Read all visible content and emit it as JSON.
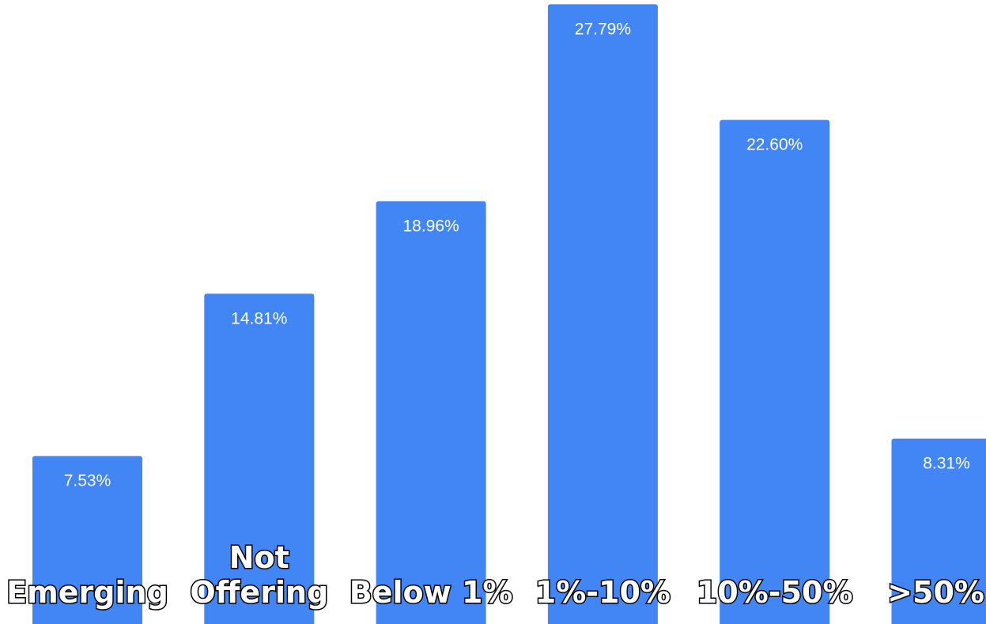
{
  "chart_data": {
    "type": "bar",
    "title": "",
    "xlabel": "",
    "ylabel": "",
    "grid": false,
    "legend": "none",
    "ylim": [
      0,
      30
    ],
    "categories": [
      [
        "Emerging"
      ],
      [
        "Not",
        "Offering"
      ],
      [
        "Below 1%"
      ],
      [
        "1%-10%"
      ],
      [
        "10%-50%"
      ],
      [
        ">50%"
      ]
    ],
    "values": [
      7.53,
      14.81,
      18.96,
      27.79,
      22.6,
      8.31
    ],
    "data_labels": [
      "7.53%",
      "14.81%",
      "18.96%",
      "27.79%",
      "22.60%",
      "8.31%"
    ],
    "colors": {
      "bar": "#4285f4",
      "data_label": "#ffffff",
      "category_label_fill": "#ffffff",
      "category_label_outline": "#000000"
    }
  }
}
